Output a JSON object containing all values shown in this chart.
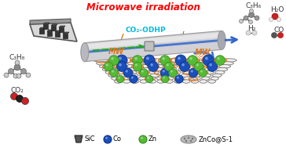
{
  "title": "Microwave irradiation",
  "title_color": "#FF0000",
  "title_fontsize": 8.5,
  "bg_color": "#FFFFFF",
  "tube_label": "CO₂-ODHP",
  "tube_label_color": "#00BBDD",
  "mw_label": "MW",
  "mw_color": "#E07820",
  "reactants_label": "C₃H₈",
  "co2_label": "CO₂",
  "products": [
    "C₃H₆",
    "H₂O",
    "H₂",
    "CO"
  ],
  "legend_items": [
    "SiC",
    "Co",
    "Zn",
    "ZnCo@S-1"
  ],
  "figsize": [
    3.64,
    1.89
  ],
  "dpi": 100
}
